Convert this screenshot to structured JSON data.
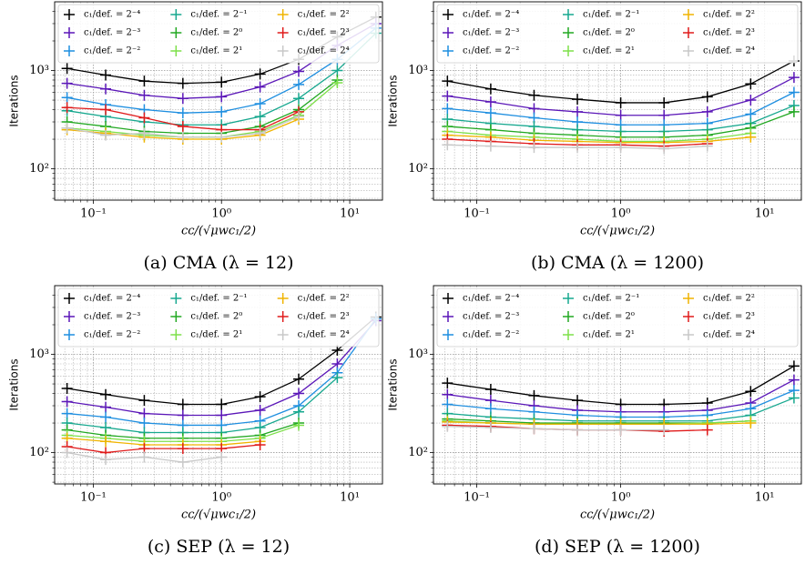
{
  "chart_data": [
    {
      "type": "line",
      "title": "(a) CMA (λ = 12)",
      "xlabel": "cᴄ/(√μwc₁/2)",
      "ylabel": "Iterations",
      "x": [
        0.0625,
        0.125,
        0.25,
        0.5,
        1,
        2,
        4,
        8,
        16
      ],
      "xlim": [
        0.05,
        18
      ],
      "ylim": [
        48,
        5000
      ],
      "log_x": true,
      "log_y": true,
      "grid": true,
      "legend": "upper left",
      "xticks": [
        {
          "value": 0.1,
          "label": "10⁻¹"
        },
        {
          "value": 1,
          "label": "10⁰"
        },
        {
          "value": 10,
          "label": "10¹"
        }
      ],
      "yticks": [
        {
          "value": 100,
          "label": "10²"
        },
        {
          "value": 1000,
          "label": "10³"
        }
      ],
      "x_minor_ticks": [
        0.06,
        0.07,
        0.08,
        0.09,
        0.2,
        0.3,
        0.4,
        0.5,
        0.6,
        0.7,
        0.8,
        0.9,
        2,
        3,
        4,
        5,
        6,
        7,
        8,
        9
      ],
      "y_minor_ticks": [
        50,
        60,
        70,
        80,
        90,
        200,
        300,
        400,
        500,
        600,
        700,
        800,
        900,
        2000,
        3000,
        4000
      ],
      "series": [
        {
          "name": "c₁/def. = 2⁻⁴",
          "color": "#000000",
          "values": [
            1050,
            900,
            780,
            740,
            760,
            920,
            1300,
            2200,
            3500
          ]
        },
        {
          "name": "c₁/def. = 2⁻³",
          "color": "#5b17b8",
          "values": [
            740,
            650,
            560,
            520,
            540,
            680,
            980,
            1800,
            3000
          ]
        },
        {
          "name": "c₁/def. = 2⁻²",
          "color": "#1f8fe0",
          "values": [
            530,
            450,
            400,
            370,
            380,
            460,
            720,
            1300,
            2700
          ]
        },
        {
          "name": "c₁/def. = 2⁻¹",
          "color": "#17a88f",
          "values": [
            390,
            340,
            300,
            280,
            280,
            340,
            520,
            1000,
            2400
          ]
        },
        {
          "name": "c₁/def. = 2⁰",
          "color": "#22a822",
          "values": [
            300,
            270,
            240,
            230,
            230,
            270,
            400,
            800,
            null
          ]
        },
        {
          "name": "c₁/def. = 2¹",
          "color": "#7ee04a",
          "values": [
            260,
            240,
            220,
            210,
            210,
            240,
            350,
            750,
            null
          ]
        },
        {
          "name": "c₁/def. = 2²",
          "color": "#f0b400",
          "values": [
            250,
            230,
            210,
            200,
            200,
            220,
            320,
            null,
            null
          ]
        },
        {
          "name": "c₁/def. = 2³",
          "color": "#e01b1b",
          "values": [
            420,
            400,
            330,
            270,
            250,
            250,
            380,
            null,
            null
          ]
        },
        {
          "name": "c₁/def. = 2⁴",
          "color": "#c8c8c8",
          "values": [
            260,
            220,
            230,
            210,
            210,
            230,
            340,
            null,
            null
          ]
        }
      ]
    },
    {
      "type": "line",
      "title": "(b) CMA (λ = 1200)",
      "xlabel": "cᴄ/(√μwc₁/2)",
      "ylabel": "Iterations",
      "x": [
        0.0625,
        0.125,
        0.25,
        0.5,
        1,
        2,
        4,
        8,
        16
      ],
      "xlim": [
        0.05,
        18
      ],
      "ylim": [
        48,
        5000
      ],
      "log_x": true,
      "log_y": true,
      "grid": true,
      "legend": "upper left",
      "xticks": [
        {
          "value": 0.1,
          "label": "10⁻¹"
        },
        {
          "value": 1,
          "label": "10⁰"
        },
        {
          "value": 10,
          "label": "10¹"
        }
      ],
      "yticks": [
        {
          "value": 100,
          "label": "10²"
        },
        {
          "value": 1000,
          "label": "10³"
        }
      ],
      "x_minor_ticks": [
        0.06,
        0.07,
        0.08,
        0.09,
        0.2,
        0.3,
        0.4,
        0.5,
        0.6,
        0.7,
        0.8,
        0.9,
        2,
        3,
        4,
        5,
        6,
        7,
        8,
        9
      ],
      "y_minor_ticks": [
        50,
        60,
        70,
        80,
        90,
        200,
        300,
        400,
        500,
        600,
        700,
        800,
        900,
        2000,
        3000,
        4000
      ],
      "series": [
        {
          "name": "c₁/def. = 2⁻⁴",
          "color": "#000000",
          "values": [
            780,
            650,
            560,
            510,
            470,
            470,
            540,
            730,
            1250
          ]
        },
        {
          "name": "c₁/def. = 2⁻³",
          "color": "#5b17b8",
          "values": [
            550,
            480,
            410,
            380,
            350,
            350,
            380,
            500,
            850
          ]
        },
        {
          "name": "c₁/def. = 2⁻²",
          "color": "#1f8fe0",
          "values": [
            410,
            370,
            330,
            300,
            280,
            280,
            290,
            360,
            600
          ]
        },
        {
          "name": "c₁/def. = 2⁻¹",
          "color": "#17a88f",
          "values": [
            320,
            290,
            270,
            250,
            240,
            240,
            250,
            290,
            440
          ]
        },
        {
          "name": "c₁/def. = 2⁰",
          "color": "#22a822",
          "values": [
            270,
            250,
            230,
            220,
            210,
            210,
            220,
            260,
            380
          ]
        },
        {
          "name": "c₁/def. = 2¹",
          "color": "#7ee04a",
          "values": [
            240,
            220,
            210,
            200,
            190,
            190,
            200,
            230,
            null
          ]
        },
        {
          "name": "c₁/def. = 2²",
          "color": "#f0b400",
          "values": [
            220,
            210,
            195,
            190,
            185,
            185,
            190,
            210,
            null
          ]
        },
        {
          "name": "c₁/def. = 2³",
          "color": "#e01b1b",
          "values": [
            200,
            190,
            180,
            175,
            175,
            170,
            180,
            null,
            null
          ]
        },
        {
          "name": "c₁/def. = 2⁴",
          "color": "#c8c8c8",
          "values": [
            175,
            170,
            165,
            165,
            165,
            160,
            170,
            null,
            null
          ]
        }
      ]
    },
    {
      "type": "line",
      "title": "(c) SEP (λ = 12)",
      "xlabel": "cᴄ/(√μwc₁/2)",
      "ylabel": "Iterations",
      "x": [
        0.0625,
        0.125,
        0.25,
        0.5,
        1,
        2,
        4,
        8,
        16
      ],
      "xlim": [
        0.05,
        18
      ],
      "ylim": [
        48,
        5000
      ],
      "log_x": true,
      "log_y": true,
      "grid": true,
      "legend": "upper left",
      "xticks": [
        {
          "value": 0.1,
          "label": "10⁻¹"
        },
        {
          "value": 1,
          "label": "10⁰"
        },
        {
          "value": 10,
          "label": "10¹"
        }
      ],
      "yticks": [
        {
          "value": 100,
          "label": "10²"
        },
        {
          "value": 1000,
          "label": "10³"
        }
      ],
      "x_minor_ticks": [
        0.06,
        0.07,
        0.08,
        0.09,
        0.2,
        0.3,
        0.4,
        0.5,
        0.6,
        0.7,
        0.8,
        0.9,
        2,
        3,
        4,
        5,
        6,
        7,
        8,
        9
      ],
      "y_minor_ticks": [
        50,
        60,
        70,
        80,
        90,
        200,
        300,
        400,
        500,
        600,
        700,
        800,
        900,
        2000,
        3000,
        4000
      ],
      "series": [
        {
          "name": "c₁/def. = 2⁻⁴",
          "color": "#000000",
          "values": [
            450,
            390,
            340,
            310,
            310,
            370,
            560,
            1100,
            2400
          ]
        },
        {
          "name": "c₁/def. = 2⁻³",
          "color": "#5b17b8",
          "values": [
            330,
            290,
            250,
            240,
            240,
            270,
            400,
            800,
            2200
          ]
        },
        {
          "name": "c₁/def. = 2⁻²",
          "color": "#1f8fe0",
          "values": [
            250,
            230,
            200,
            190,
            190,
            210,
            300,
            650,
            2300
          ]
        },
        {
          "name": "c₁/def. = 2⁻¹",
          "color": "#17a88f",
          "values": [
            200,
            180,
            160,
            160,
            160,
            180,
            260,
            580,
            null
          ]
        },
        {
          "name": "c₁/def. = 2⁰",
          "color": "#22a822",
          "values": [
            170,
            150,
            140,
            140,
            140,
            150,
            200,
            null,
            null
          ]
        },
        {
          "name": "c₁/def. = 2¹",
          "color": "#7ee04a",
          "values": [
            150,
            140,
            130,
            130,
            130,
            140,
            190,
            null,
            null
          ]
        },
        {
          "name": "c₁/def. = 2²",
          "color": "#f0b400",
          "values": [
            140,
            130,
            120,
            120,
            120,
            130,
            null,
            null,
            null
          ]
        },
        {
          "name": "c₁/def. = 2³",
          "color": "#e01b1b",
          "values": [
            115,
            100,
            110,
            110,
            110,
            120,
            null,
            null,
            null
          ]
        },
        {
          "name": "c₁/def. = 2⁴",
          "color": "#c8c8c8",
          "values": [
            100,
            85,
            90,
            80,
            90,
            null,
            null,
            null,
            null
          ]
        }
      ]
    },
    {
      "type": "line",
      "title": "(d) SEP (λ = 1200)",
      "xlabel": "cᴄ/(√μwc₁/2)",
      "ylabel": "Iterations",
      "x": [
        0.0625,
        0.125,
        0.25,
        0.5,
        1,
        2,
        4,
        8,
        16
      ],
      "xlim": [
        0.05,
        18
      ],
      "ylim": [
        48,
        5000
      ],
      "log_x": true,
      "log_y": true,
      "grid": true,
      "legend": "upper left",
      "xticks": [
        {
          "value": 0.1,
          "label": "10⁻¹"
        },
        {
          "value": 1,
          "label": "10⁰"
        },
        {
          "value": 10,
          "label": "10¹"
        }
      ],
      "yticks": [
        {
          "value": 100,
          "label": "10²"
        },
        {
          "value": 1000,
          "label": "10³"
        }
      ],
      "x_minor_ticks": [
        0.06,
        0.07,
        0.08,
        0.09,
        0.2,
        0.3,
        0.4,
        0.5,
        0.6,
        0.7,
        0.8,
        0.9,
        2,
        3,
        4,
        5,
        6,
        7,
        8,
        9
      ],
      "y_minor_ticks": [
        50,
        60,
        70,
        80,
        90,
        200,
        300,
        400,
        500,
        600,
        700,
        800,
        900,
        2000,
        3000,
        4000
      ],
      "series": [
        {
          "name": "c₁/def. = 2⁻⁴",
          "color": "#000000",
          "values": [
            510,
            440,
            380,
            340,
            310,
            310,
            320,
            420,
            760
          ]
        },
        {
          "name": "c₁/def. = 2⁻³",
          "color": "#5b17b8",
          "values": [
            390,
            340,
            300,
            270,
            260,
            260,
            270,
            320,
            550
          ]
        },
        {
          "name": "c₁/def. = 2⁻²",
          "color": "#1f8fe0",
          "values": [
            310,
            280,
            260,
            240,
            230,
            230,
            240,
            280,
            430
          ]
        },
        {
          "name": "c₁/def. = 2⁻¹",
          "color": "#17a88f",
          "values": [
            250,
            230,
            220,
            210,
            210,
            210,
            210,
            240,
            360
          ]
        },
        {
          "name": "c₁/def. = 2⁰",
          "color": "#22a822",
          "values": [
            220,
            210,
            200,
            200,
            200,
            200,
            200,
            210,
            null
          ]
        },
        {
          "name": "c₁/def. = 2¹",
          "color": "#7ee04a",
          "values": [
            210,
            200,
            195,
            195,
            195,
            195,
            200,
            210,
            null
          ]
        },
        {
          "name": "c₁/def. = 2²",
          "color": "#f0b400",
          "values": [
            205,
            200,
            195,
            195,
            195,
            195,
            195,
            200,
            null
          ]
        },
        {
          "name": "c₁/def. = 2³",
          "color": "#e01b1b",
          "values": [
            190,
            185,
            175,
            170,
            170,
            165,
            170,
            null,
            null
          ]
        },
        {
          "name": "c₁/def. = 2⁴",
          "color": "#c8c8c8",
          "values": [
            185,
            180,
            175,
            170,
            170,
            170,
            null,
            null,
            null
          ]
        }
      ]
    }
  ]
}
